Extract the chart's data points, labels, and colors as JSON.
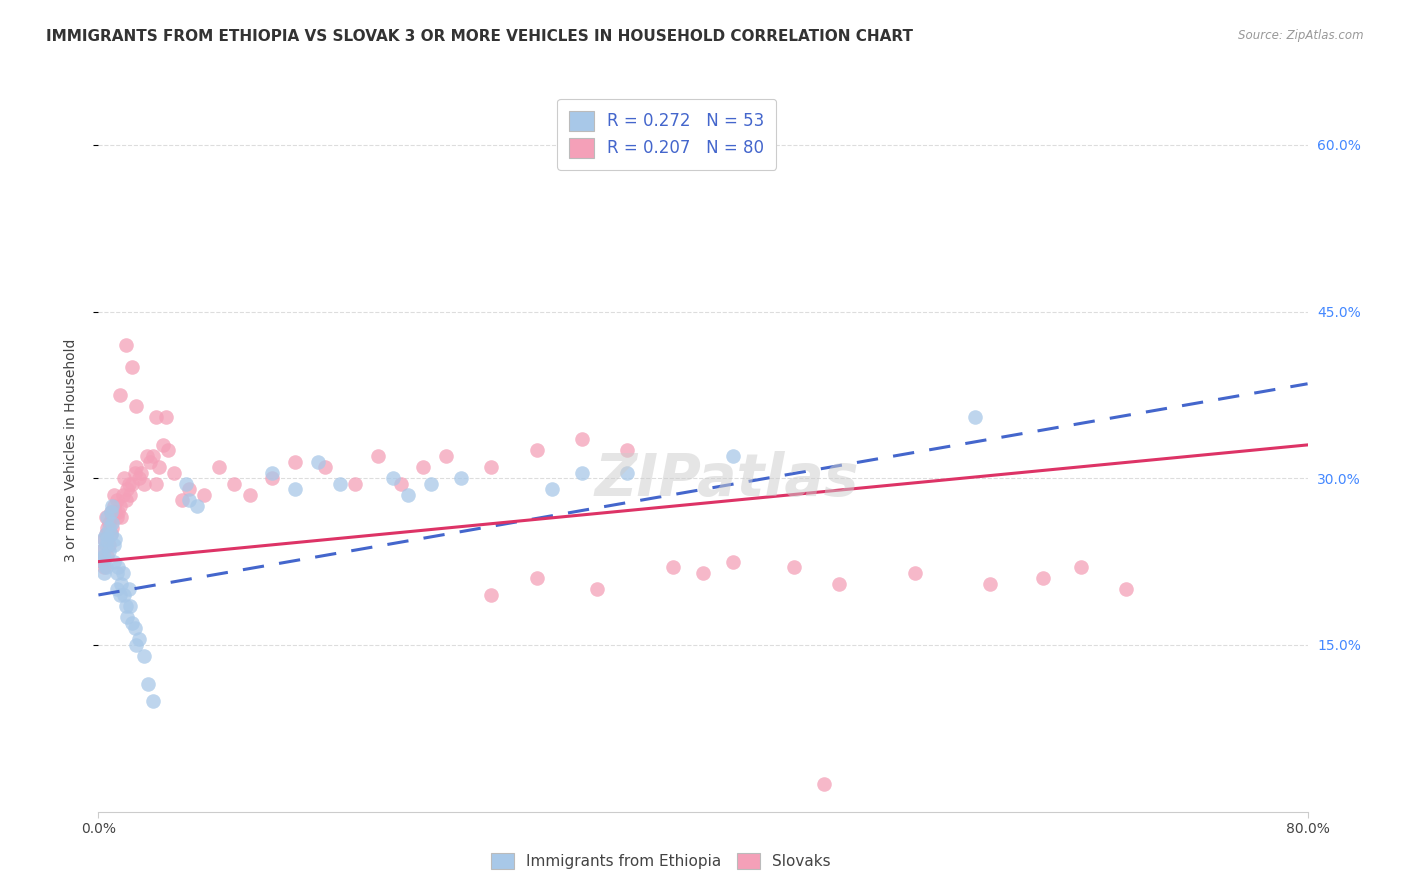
{
  "title": "IMMIGRANTS FROM ETHIOPIA VS SLOVAK 3 OR MORE VEHICLES IN HOUSEHOLD CORRELATION CHART",
  "source": "Source: ZipAtlas.com",
  "ylabel": "3 or more Vehicles in Household",
  "xmin": 0.0,
  "xmax": 0.8,
  "ymin": 0.0,
  "ymax": 0.65,
  "yticks": [
    0.15,
    0.3,
    0.45,
    0.6
  ],
  "ytick_labels": [
    "15.0%",
    "30.0%",
    "45.0%",
    "60.0%"
  ],
  "legend1_label": "R = 0.272   N = 53",
  "legend2_label": "R = 0.207   N = 80",
  "color_blue": "#a8c8e8",
  "color_pink": "#f4a0b8",
  "trendline_blue": "#4466cc",
  "trendline_pink": "#dd3366",
  "watermark": "ZIPatlas",
  "background_color": "#ffffff",
  "grid_color": "#dddddd",
  "title_fontsize": 11,
  "axis_label_fontsize": 10,
  "tick_fontsize": 10,
  "legend_fontsize": 12,
  "right_tick_color": "#4488ff",
  "eth_trend_start": 0.195,
  "eth_trend_end": 0.385,
  "slov_trend_start": 0.225,
  "slov_trend_end": 0.33,
  "eth_x": [
    0.002,
    0.003,
    0.003,
    0.004,
    0.004,
    0.005,
    0.005,
    0.005,
    0.006,
    0.006,
    0.007,
    0.007,
    0.008,
    0.008,
    0.009,
    0.009,
    0.01,
    0.01,
    0.011,
    0.012,
    0.012,
    0.013,
    0.014,
    0.015,
    0.016,
    0.017,
    0.018,
    0.019,
    0.02,
    0.021,
    0.022,
    0.024,
    0.025,
    0.027,
    0.03,
    0.033,
    0.036,
    0.058,
    0.06,
    0.065,
    0.115,
    0.13,
    0.145,
    0.16,
    0.195,
    0.205,
    0.22,
    0.24,
    0.3,
    0.32,
    0.35,
    0.42,
    0.58
  ],
  "eth_y": [
    0.235,
    0.225,
    0.245,
    0.215,
    0.23,
    0.25,
    0.22,
    0.24,
    0.265,
    0.245,
    0.255,
    0.235,
    0.27,
    0.25,
    0.26,
    0.275,
    0.24,
    0.225,
    0.245,
    0.215,
    0.2,
    0.22,
    0.195,
    0.205,
    0.215,
    0.195,
    0.185,
    0.175,
    0.2,
    0.185,
    0.17,
    0.165,
    0.15,
    0.155,
    0.14,
    0.115,
    0.1,
    0.295,
    0.28,
    0.275,
    0.305,
    0.29,
    0.315,
    0.295,
    0.3,
    0.285,
    0.295,
    0.3,
    0.29,
    0.305,
    0.305,
    0.32,
    0.355
  ],
  "slov_x": [
    0.002,
    0.003,
    0.004,
    0.004,
    0.005,
    0.005,
    0.006,
    0.006,
    0.007,
    0.007,
    0.008,
    0.008,
    0.009,
    0.009,
    0.01,
    0.01,
    0.011,
    0.012,
    0.012,
    0.013,
    0.014,
    0.015,
    0.016,
    0.017,
    0.018,
    0.019,
    0.02,
    0.021,
    0.022,
    0.024,
    0.025,
    0.027,
    0.028,
    0.03,
    0.032,
    0.034,
    0.036,
    0.038,
    0.04,
    0.043,
    0.046,
    0.05,
    0.055,
    0.06,
    0.07,
    0.08,
    0.09,
    0.1,
    0.115,
    0.13,
    0.15,
    0.17,
    0.185,
    0.2,
    0.215,
    0.23,
    0.26,
    0.29,
    0.32,
    0.35,
    0.26,
    0.29,
    0.33,
    0.38,
    0.4,
    0.42,
    0.46,
    0.49,
    0.54,
    0.59,
    0.625,
    0.65,
    0.68,
    0.025,
    0.038,
    0.045,
    0.018,
    0.022,
    0.48,
    0.014
  ],
  "slov_y": [
    0.235,
    0.225,
    0.22,
    0.245,
    0.25,
    0.265,
    0.23,
    0.255,
    0.24,
    0.26,
    0.25,
    0.27,
    0.265,
    0.255,
    0.275,
    0.285,
    0.27,
    0.28,
    0.265,
    0.27,
    0.275,
    0.265,
    0.285,
    0.3,
    0.28,
    0.29,
    0.295,
    0.285,
    0.295,
    0.305,
    0.31,
    0.3,
    0.305,
    0.295,
    0.32,
    0.315,
    0.32,
    0.295,
    0.31,
    0.33,
    0.325,
    0.305,
    0.28,
    0.29,
    0.285,
    0.31,
    0.295,
    0.285,
    0.3,
    0.315,
    0.31,
    0.295,
    0.32,
    0.295,
    0.31,
    0.32,
    0.31,
    0.325,
    0.335,
    0.325,
    0.195,
    0.21,
    0.2,
    0.22,
    0.215,
    0.225,
    0.22,
    0.205,
    0.215,
    0.205,
    0.21,
    0.22,
    0.2,
    0.365,
    0.355,
    0.355,
    0.42,
    0.4,
    0.025,
    0.375
  ]
}
